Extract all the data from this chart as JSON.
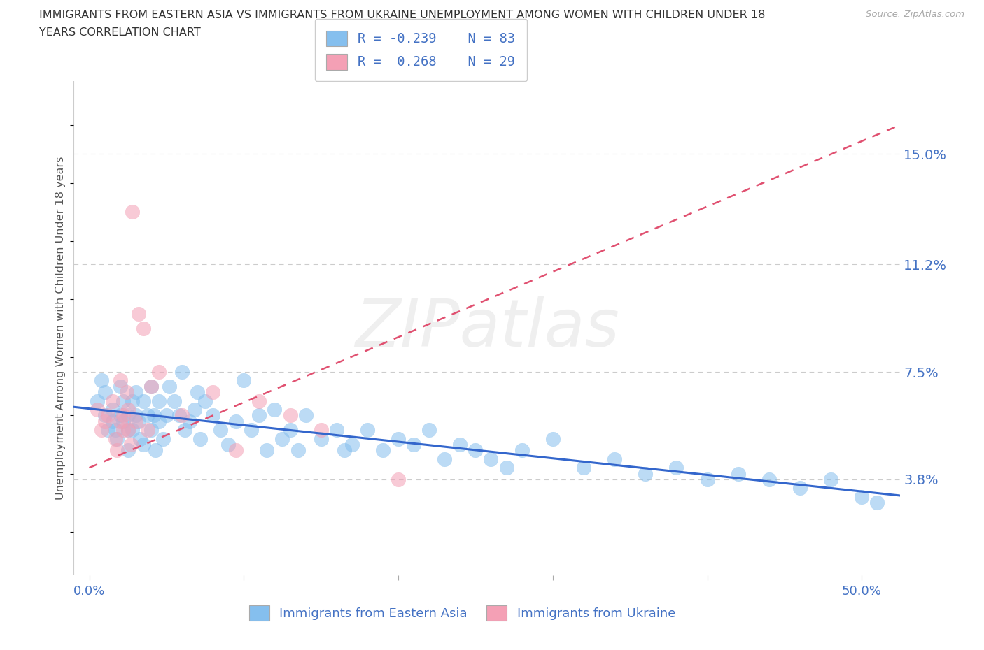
{
  "title_line1": "IMMIGRANTS FROM EASTERN ASIA VS IMMIGRANTS FROM UKRAINE UNEMPLOYMENT AMONG WOMEN WITH CHILDREN UNDER 18",
  "title_line2": "YEARS CORRELATION CHART",
  "source_text": "Source: ZipAtlas.com",
  "ylabel": "Unemployment Among Women with Children Under 18 years",
  "xlabel_ticks": [
    "0.0%",
    "",
    "",
    "",
    "",
    "50.0%"
  ],
  "xlabel_vals": [
    0.0,
    0.1,
    0.2,
    0.3,
    0.4,
    0.5
  ],
  "ytick_labels": [
    "3.8%",
    "7.5%",
    "11.2%",
    "15.0%"
  ],
  "ytick_vals": [
    0.038,
    0.075,
    0.112,
    0.15
  ],
  "ylim": [
    0.005,
    0.175
  ],
  "xlim": [
    -0.01,
    0.525
  ],
  "R_eastern": -0.239,
  "N_eastern": 83,
  "R_ukraine": 0.268,
  "N_ukraine": 29,
  "color_eastern": "#85BFEE",
  "color_ukraine": "#F4A0B5",
  "trend_color_eastern": "#3366CC",
  "trend_color_ukraine": "#E05070",
  "background_color": "#FFFFFF",
  "grid_color": "#CCCCCC",
  "title_color": "#333333",
  "label_color": "#4472C4",
  "watermark": "ZIPatlas",
  "eastern_x": [
    0.005,
    0.008,
    0.01,
    0.01,
    0.012,
    0.015,
    0.015,
    0.017,
    0.018,
    0.02,
    0.02,
    0.022,
    0.022,
    0.025,
    0.025,
    0.025,
    0.028,
    0.028,
    0.03,
    0.03,
    0.032,
    0.033,
    0.035,
    0.035,
    0.038,
    0.04,
    0.04,
    0.042,
    0.043,
    0.045,
    0.045,
    0.048,
    0.05,
    0.052,
    0.055,
    0.058,
    0.06,
    0.062,
    0.065,
    0.068,
    0.07,
    0.072,
    0.075,
    0.08,
    0.085,
    0.09,
    0.095,
    0.1,
    0.105,
    0.11,
    0.115,
    0.12,
    0.125,
    0.13,
    0.135,
    0.14,
    0.15,
    0.16,
    0.165,
    0.17,
    0.18,
    0.19,
    0.2,
    0.21,
    0.22,
    0.23,
    0.24,
    0.25,
    0.26,
    0.27,
    0.28,
    0.3,
    0.32,
    0.34,
    0.36,
    0.38,
    0.4,
    0.42,
    0.44,
    0.46,
    0.48,
    0.5,
    0.51
  ],
  "eastern_y": [
    0.065,
    0.072,
    0.06,
    0.068,
    0.055,
    0.062,
    0.058,
    0.055,
    0.052,
    0.06,
    0.07,
    0.065,
    0.058,
    0.06,
    0.055,
    0.048,
    0.065,
    0.055,
    0.068,
    0.06,
    0.058,
    0.052,
    0.065,
    0.05,
    0.06,
    0.07,
    0.055,
    0.06,
    0.048,
    0.065,
    0.058,
    0.052,
    0.06,
    0.07,
    0.065,
    0.06,
    0.075,
    0.055,
    0.058,
    0.062,
    0.068,
    0.052,
    0.065,
    0.06,
    0.055,
    0.05,
    0.058,
    0.072,
    0.055,
    0.06,
    0.048,
    0.062,
    0.052,
    0.055,
    0.048,
    0.06,
    0.052,
    0.055,
    0.048,
    0.05,
    0.055,
    0.048,
    0.052,
    0.05,
    0.055,
    0.045,
    0.05,
    0.048,
    0.045,
    0.042,
    0.048,
    0.052,
    0.042,
    0.045,
    0.04,
    0.042,
    0.038,
    0.04,
    0.038,
    0.035,
    0.038,
    0.032,
    0.03
  ],
  "ukraine_x": [
    0.005,
    0.008,
    0.01,
    0.012,
    0.015,
    0.017,
    0.018,
    0.02,
    0.02,
    0.022,
    0.022,
    0.024,
    0.025,
    0.025,
    0.027,
    0.028,
    0.03,
    0.032,
    0.035,
    0.038,
    0.04,
    0.045,
    0.06,
    0.08,
    0.095,
    0.11,
    0.13,
    0.15,
    0.2
  ],
  "ukraine_y": [
    0.062,
    0.055,
    0.058,
    0.06,
    0.065,
    0.052,
    0.048,
    0.058,
    0.072,
    0.06,
    0.055,
    0.068,
    0.062,
    0.055,
    0.05,
    0.13,
    0.058,
    0.095,
    0.09,
    0.055,
    0.07,
    0.075,
    0.06,
    0.068,
    0.048,
    0.065,
    0.06,
    0.055,
    0.038
  ],
  "ukraine_trend_x": [
    0.0,
    0.525
  ],
  "ukraine_trend_y_start": 0.042,
  "ukraine_trend_y_end": 0.16
}
